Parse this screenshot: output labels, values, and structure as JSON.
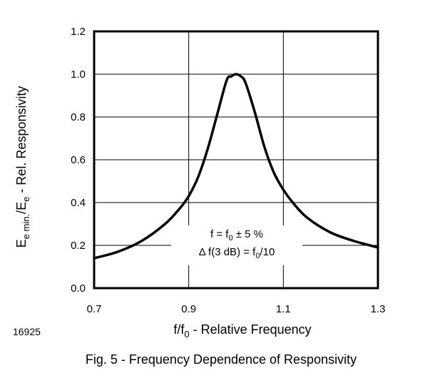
{
  "chart_data": {
    "type": "line",
    "xlabel": "f/f0 - Relative Frequency",
    "ylabel": "Ee min./Ee - Rel. Responsivity",
    "xlim": [
      0.7,
      1.3
    ],
    "ylim": [
      0.0,
      1.2
    ],
    "x_ticks": [
      "0.7",
      "0.9",
      "1.1",
      "1.3"
    ],
    "y_ticks": [
      "0.0",
      "0.2",
      "0.4",
      "0.6",
      "0.8",
      "1.0",
      "1.2"
    ],
    "grid": true,
    "series": [
      {
        "x": [
          0.7,
          0.75,
          0.8,
          0.85,
          0.88,
          0.9,
          0.92,
          0.94,
          0.96,
          0.98,
          0.99,
          1.0,
          1.01,
          1.02,
          1.04,
          1.06,
          1.08,
          1.1,
          1.12,
          1.15,
          1.2,
          1.25,
          1.3
        ],
        "y": [
          0.14,
          0.17,
          0.22,
          0.3,
          0.37,
          0.43,
          0.52,
          0.65,
          0.81,
          0.97,
          0.99,
          1.0,
          0.99,
          0.96,
          0.82,
          0.66,
          0.54,
          0.46,
          0.4,
          0.33,
          0.26,
          0.22,
          0.19
        ]
      }
    ],
    "annotation": {
      "line1": "f = f0 ± 5 %",
      "line2": "Δ f(3 dB) = f0/10"
    },
    "figure_id": "16925",
    "caption": "Fig. 5 - Frequency Dependence of Responsivity"
  }
}
